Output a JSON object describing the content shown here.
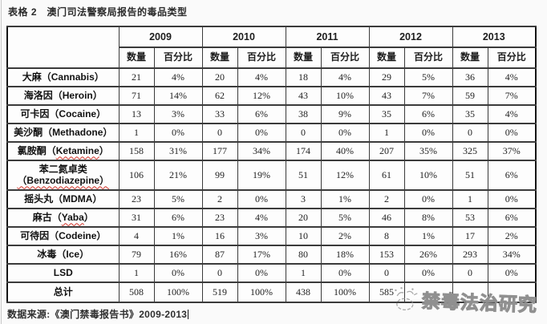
{
  "page": {
    "title": "表格 2　澳门司法警察局报告的毒品类型",
    "source_note": "数据来源:《澳门禁毒报告书》2009-2013",
    "watermark_text": "禁毒法治研究"
  },
  "colors": {
    "page_background": "#fafafa",
    "table_border": "#3b3b3b",
    "outer_border": "#141414",
    "text": "#1d1d1d",
    "spellcheck_underline": "#d3342a",
    "watermark_gray": "#909090"
  },
  "icons": {
    "watermark_logo": "panda-doodle-icon"
  },
  "table": {
    "years": [
      "2009",
      "2010",
      "2011",
      "2012",
      "2013"
    ],
    "sub_headers": [
      "数量",
      "百分比"
    ],
    "rows": [
      {
        "lines": [
          [
            {
              "text": "大麻（Cannabis）"
            }
          ]
        ],
        "values": [
          "21",
          "4%",
          "20",
          "4%",
          "18",
          "4%",
          "29",
          "5%",
          "36",
          "4%"
        ]
      },
      {
        "lines": [
          [
            {
              "text": "海洛因（Heroin）"
            }
          ]
        ],
        "values": [
          "71",
          "14%",
          "62",
          "12%",
          "43",
          "10%",
          "43",
          "7%",
          "59",
          "7%"
        ]
      },
      {
        "lines": [
          [
            {
              "text": "可卡因（Cocaine）"
            }
          ]
        ],
        "values": [
          "13",
          "3%",
          "33",
          "6%",
          "38",
          "9%",
          "35",
          "6%",
          "35",
          "4%"
        ]
      },
      {
        "lines": [
          [
            {
              "text": "美沙酮（Methadone）"
            }
          ]
        ],
        "values": [
          "1",
          "0%",
          "0",
          "0%",
          "0",
          "0%",
          "1",
          "0%",
          "0",
          "0%"
        ]
      },
      {
        "lines": [
          [
            {
              "text": "氯胺酮（"
            },
            {
              "text": "Ketamine",
              "wavy": true
            },
            {
              "text": "）"
            }
          ]
        ],
        "values": [
          "158",
          "31%",
          "177",
          "34%",
          "174",
          "40%",
          "207",
          "35%",
          "325",
          "37%"
        ]
      },
      {
        "lines": [
          [
            {
              "text": "苯二氮卓类"
            }
          ],
          [
            {
              "text": "（Benzodiazepine）",
              "wavy": true
            }
          ]
        ],
        "values": [
          "106",
          "21%",
          "99",
          "19%",
          "51",
          "12%",
          "61",
          "10%",
          "51",
          "6%"
        ]
      },
      {
        "lines": [
          [
            {
              "text": "摇头丸（MDMA）"
            }
          ]
        ],
        "values": [
          "23",
          "5%",
          "2",
          "0%",
          "3",
          "1%",
          "2",
          "0%",
          "1",
          "0%"
        ]
      },
      {
        "lines": [
          [
            {
              "text": "麻古（"
            },
            {
              "text": "Yaba",
              "wavy": true
            },
            {
              "text": "）"
            }
          ]
        ],
        "values": [
          "31",
          "6%",
          "23",
          "4%",
          "20",
          "5%",
          "46",
          "8%",
          "53",
          "6%"
        ]
      },
      {
        "lines": [
          [
            {
              "text": "可待因（Codeine）"
            }
          ]
        ],
        "values": [
          "4",
          "1%",
          "16",
          "3%",
          "10",
          "2%",
          "8",
          "1%",
          "17",
          "2%"
        ]
      },
      {
        "lines": [
          [
            {
              "text": "冰毒（Ice）"
            }
          ]
        ],
        "values": [
          "79",
          "16%",
          "87",
          "17%",
          "80",
          "18%",
          "153",
          "26%",
          "293",
          "34%"
        ]
      },
      {
        "lines": [
          [
            {
              "text": "LSD"
            }
          ]
        ],
        "values": [
          "1",
          "0%",
          "0",
          "0%",
          "1",
          "0%",
          "0",
          "0%",
          "0",
          "0%"
        ]
      },
      {
        "lines": [
          [
            {
              "text": "总计"
            }
          ]
        ],
        "total": true,
        "values": [
          "508",
          "100%",
          "519",
          "100%",
          "438",
          "100%",
          "585",
          "",
          "",
          ""
        ]
      }
    ]
  }
}
